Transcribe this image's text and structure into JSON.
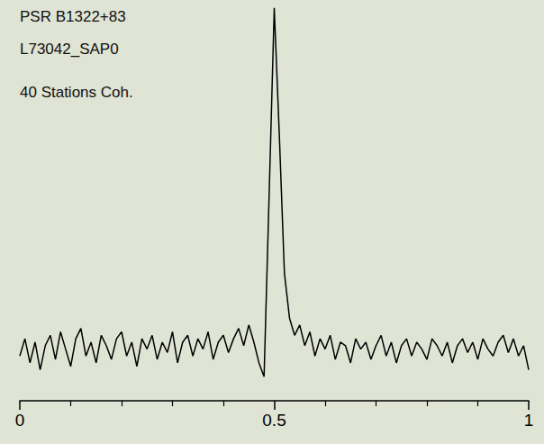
{
  "chart_data": {
    "type": "line",
    "annotations": [
      "PSR B1322+83",
      "L73042_SAP0",
      "40 Stations Coh."
    ],
    "x": [
      0,
      0.01,
      0.02,
      0.03,
      0.04,
      0.05,
      0.06,
      0.07,
      0.08,
      0.09,
      0.1,
      0.11,
      0.12,
      0.13,
      0.14,
      0.15,
      0.16,
      0.17,
      0.18,
      0.19,
      0.2,
      0.21,
      0.22,
      0.23,
      0.24,
      0.25,
      0.26,
      0.27,
      0.28,
      0.29,
      0.3,
      0.31,
      0.32,
      0.33,
      0.34,
      0.35,
      0.36,
      0.37,
      0.38,
      0.39,
      0.4,
      0.41,
      0.42,
      0.43,
      0.44,
      0.45,
      0.46,
      0.47,
      0.48,
      0.49,
      0.5,
      0.51,
      0.52,
      0.53,
      0.54,
      0.55,
      0.56,
      0.57,
      0.58,
      0.59,
      0.6,
      0.61,
      0.62,
      0.63,
      0.64,
      0.65,
      0.66,
      0.67,
      0.68,
      0.69,
      0.7,
      0.71,
      0.72,
      0.73,
      0.74,
      0.75,
      0.76,
      0.77,
      0.78,
      0.79,
      0.8,
      0.81,
      0.82,
      0.83,
      0.84,
      0.85,
      0.86,
      0.87,
      0.88,
      0.89,
      0.9,
      0.91,
      0.92,
      0.93,
      0.94,
      0.95,
      0.96,
      0.97,
      0.98,
      0.99,
      1
    ],
    "values": [
      -0.02,
      0.03,
      -0.04,
      0.02,
      -0.06,
      0.01,
      0.04,
      -0.03,
      0.05,
      0.0,
      -0.05,
      0.03,
      0.06,
      -0.02,
      0.02,
      -0.04,
      0.04,
      0.01,
      -0.03,
      0.03,
      0.05,
      -0.02,
      0.02,
      -0.05,
      0.03,
      0.0,
      0.04,
      -0.03,
      0.02,
      -0.01,
      0.05,
      -0.04,
      0.02,
      0.04,
      -0.02,
      0.03,
      0.0,
      0.05,
      -0.03,
      0.02,
      0.04,
      -0.01,
      0.03,
      0.06,
      0.01,
      0.07,
      0.02,
      -0.04,
      -0.08,
      0.45,
      0.99,
      0.62,
      0.22,
      0.09,
      0.04,
      0.07,
      0.01,
      0.05,
      -0.02,
      0.03,
      0.0,
      0.04,
      -0.03,
      0.02,
      0.01,
      -0.04,
      0.03,
      0.0,
      0.02,
      -0.03,
      0.01,
      0.04,
      -0.02,
      0.02,
      -0.04,
      0.01,
      0.03,
      -0.02,
      0.02,
      0.0,
      -0.03,
      0.03,
      0.01,
      -0.02,
      0.02,
      -0.04,
      0.01,
      0.03,
      -0.01,
      0.02,
      -0.03,
      0.03,
      0.0,
      -0.02,
      0.02,
      0.04,
      -0.01,
      0.03,
      -0.02,
      0.01,
      -0.06
    ],
    "color": "#000000",
    "xlim": [
      0,
      1
    ],
    "xticks": [
      0,
      0.5,
      1
    ],
    "ylim": [
      -0.15,
      1.0
    ],
    "grid": false,
    "tick_labels": "x"
  }
}
